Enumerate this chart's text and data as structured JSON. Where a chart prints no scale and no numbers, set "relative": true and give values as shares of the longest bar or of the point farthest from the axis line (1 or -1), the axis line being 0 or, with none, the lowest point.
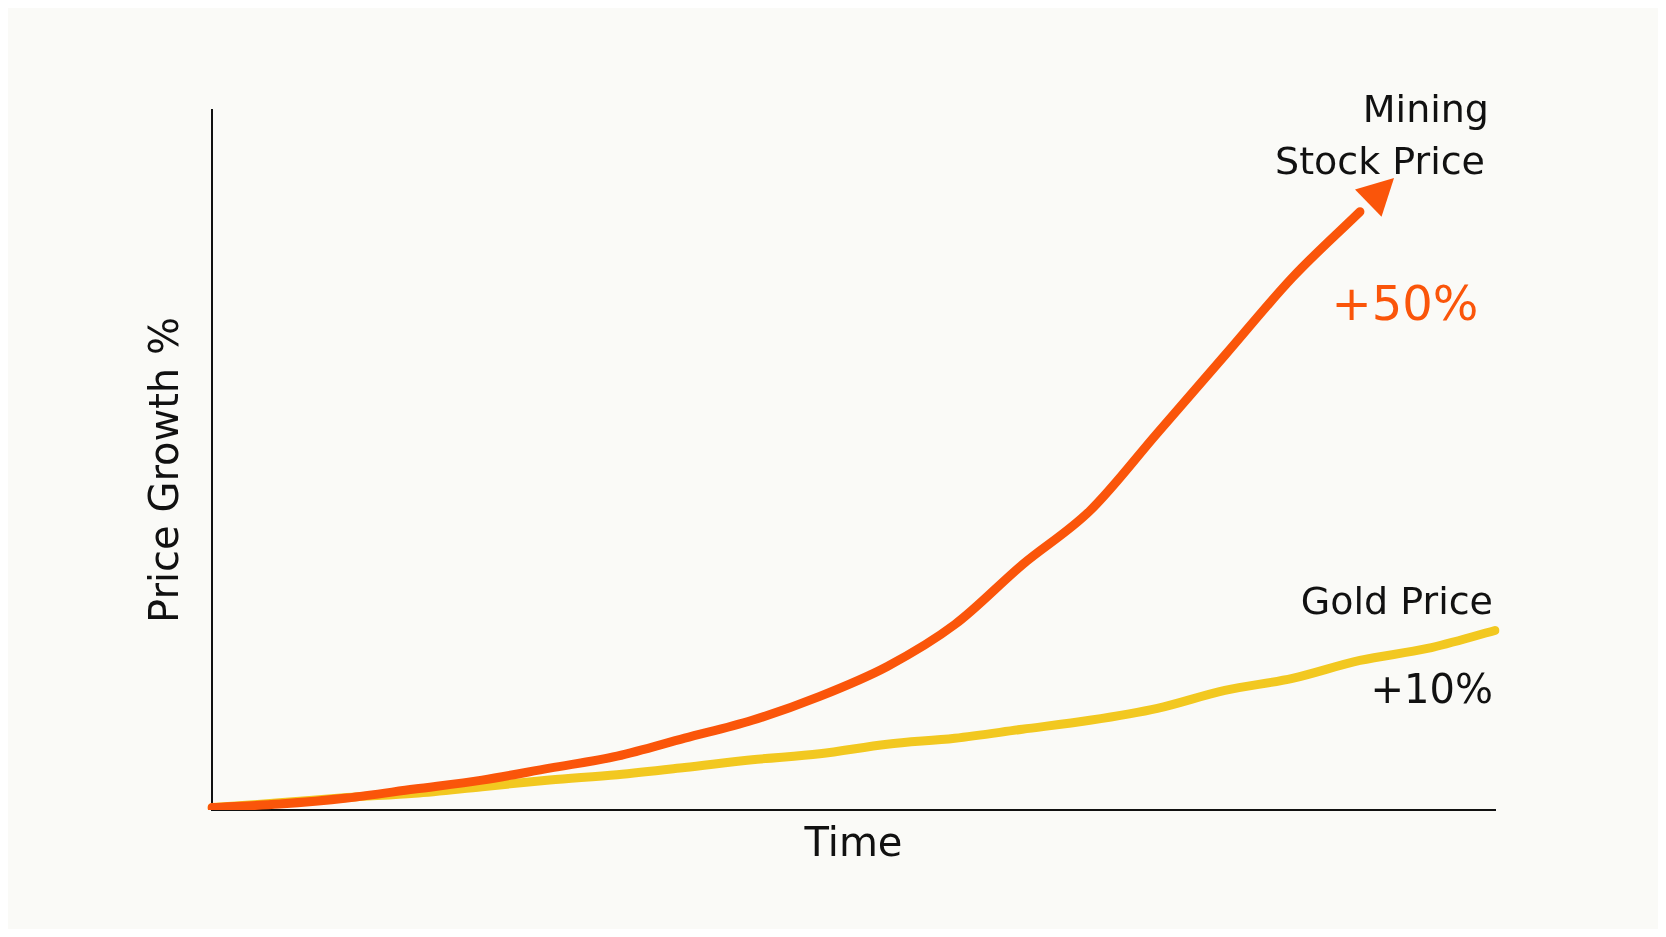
{
  "chart_data": {
    "type": "line",
    "relative": true,
    "xlabel": "Time",
    "ylabel": "Price Growth %",
    "categories": [
      null,
      null,
      null,
      null,
      null,
      null,
      null,
      null,
      null,
      null,
      null,
      null,
      null,
      null,
      null,
      null,
      null,
      null,
      null,
      null
    ],
    "series": [
      {
        "name": "Mining Stock Price",
        "color": "#fa550a",
        "values": [
          0.004,
          0.01,
          0.02,
          0.035,
          0.05,
          0.07,
          0.09,
          0.12,
          0.15,
          0.19,
          0.24,
          0.31,
          0.41,
          0.5,
          0.63,
          0.76,
          0.89,
          1,
          null,
          null
        ]
      },
      {
        "name": "Gold Price",
        "color": "#f2c820",
        "values": [
          0.004,
          0.012,
          0.021,
          0.028,
          0.039,
          0.05,
          0.059,
          0.071,
          0.084,
          0.094,
          0.11,
          0.12,
          0.135,
          0.15,
          0.17,
          0.2,
          0.22,
          0.25,
          0.27,
          0.3
        ]
      }
    ],
    "annotations": [
      "+50%",
      "+10%"
    ],
    "grid": false,
    "legend": false,
    "marker": "none",
    "line_style": "solid"
  }
}
